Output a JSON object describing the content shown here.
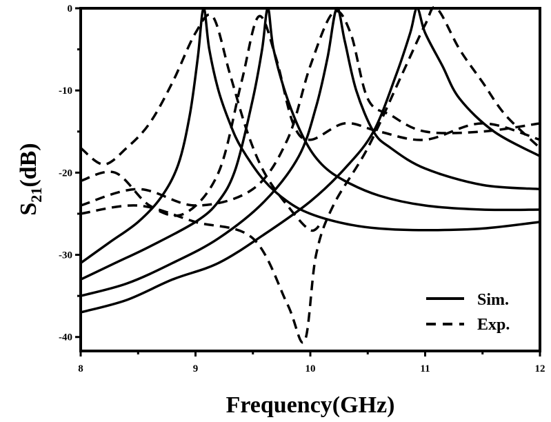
{
  "chart_data": {
    "type": "line",
    "title": "",
    "xlabel": "Frequency(GHz)",
    "ylabel_main": "S",
    "ylabel_sub": "21",
    "ylabel_tail": "(dB)",
    "xlim": [
      8,
      12
    ],
    "ylim": [
      -41.7,
      0
    ],
    "xticks": [
      8,
      9,
      10,
      11,
      12
    ],
    "xtick_labels": [
      "8",
      "9",
      "10",
      "11",
      "12"
    ],
    "yticks": [
      0,
      -10,
      -20,
      -30,
      -40
    ],
    "ytick_labels": [
      "0",
      "-10",
      "-20",
      "-30",
      "-40"
    ],
    "grid": false,
    "legend": {
      "placement": "bottom-right",
      "entries": [
        {
          "label": "Sim.",
          "style": "solid"
        },
        {
          "label": "Exp.",
          "style": "dashed"
        }
      ]
    },
    "series": [
      {
        "name": "Sim. 1",
        "style": "solid",
        "x": [
          8,
          8.25,
          8.5,
          8.7,
          8.85,
          8.95,
          9.02,
          9.07,
          9.12,
          9.2,
          9.3,
          9.4,
          9.6,
          9.8,
          10,
          10.3,
          10.6,
          11,
          11.5,
          12
        ],
        "y": [
          -31,
          -28.5,
          -26,
          -23,
          -19,
          -13,
          -6,
          0,
          -5,
          -10,
          -14,
          -17,
          -21,
          -23.5,
          -25,
          -26.2,
          -26.8,
          -27,
          -26.8,
          -26
        ]
      },
      {
        "name": "Sim. 2",
        "style": "solid",
        "x": [
          8,
          8.3,
          8.6,
          9,
          9.2,
          9.35,
          9.5,
          9.58,
          9.63,
          9.68,
          9.8,
          9.95,
          10.1,
          10.3,
          10.6,
          11,
          11.5,
          12
        ],
        "y": [
          -33,
          -31,
          -29,
          -26,
          -23.5,
          -19.5,
          -11,
          -5,
          0,
          -5,
          -11,
          -16,
          -19,
          -21,
          -22.8,
          -24,
          -24.5,
          -24.5
        ]
      },
      {
        "name": "Sim. 3",
        "style": "solid",
        "x": [
          8,
          8.4,
          8.8,
          9.2,
          9.6,
          9.9,
          10.05,
          10.15,
          10.23,
          10.3,
          10.4,
          10.55,
          10.7,
          11,
          11.5,
          12
        ],
        "y": [
          -35,
          -33.5,
          -31,
          -28,
          -23.5,
          -18,
          -12,
          -6,
          0,
          -4,
          -10,
          -15,
          -17,
          -19.5,
          -21.5,
          -22
        ]
      },
      {
        "name": "Sim. 4",
        "style": "solid",
        "x": [
          8,
          8.4,
          8.8,
          9.2,
          9.6,
          10,
          10.3,
          10.55,
          10.75,
          10.87,
          10.93,
          11,
          11.15,
          11.3,
          11.6,
          12
        ],
        "y": [
          -37,
          -35.5,
          -33,
          -31,
          -27.5,
          -23.5,
          -19.5,
          -15,
          -8,
          -3,
          0,
          -3,
          -7,
          -11,
          -15,
          -18
        ]
      },
      {
        "name": "Exp. 1",
        "style": "dashed",
        "x": [
          8,
          8.2,
          8.4,
          8.6,
          8.8,
          9,
          9.15,
          9.3,
          9.45,
          9.6,
          9.8,
          10,
          10.1
        ],
        "y": [
          -17,
          -19,
          -17,
          -14,
          -9,
          -3,
          -1,
          -8,
          -15,
          -20,
          -24,
          -27,
          -26
        ]
      },
      {
        "name": "Exp. 2",
        "style": "dashed",
        "x": [
          8,
          8.3,
          8.6,
          8.9,
          9.2,
          9.4,
          9.55,
          9.7,
          9.85,
          10,
          10.3,
          10.6,
          11,
          11.5,
          12
        ],
        "y": [
          -21,
          -20,
          -24,
          -25,
          -20,
          -9,
          -1,
          -6,
          -14,
          -16,
          -14,
          -15,
          -16,
          -14,
          -16
        ]
      },
      {
        "name": "Exp. 3",
        "style": "dashed",
        "x": [
          8,
          8.5,
          9,
          9.5,
          9.8,
          10,
          10.2,
          10.35,
          10.5,
          10.7,
          11,
          11.5,
          12
        ],
        "y": [
          -24,
          -22,
          -24,
          -22,
          -16,
          -7,
          -0.5,
          -3,
          -11,
          -13,
          -15,
          -15,
          -14
        ]
      },
      {
        "name": "Exp. 4",
        "style": "dashed",
        "x": [
          8,
          8.5,
          9,
          9.5,
          9.8,
          9.95,
          10.05,
          10.2,
          10.5,
          10.8,
          11,
          11.1,
          11.3,
          11.5,
          11.7,
          12
        ],
        "y": [
          -25,
          -24,
          -26,
          -28,
          -36,
          -40.5,
          -30,
          -24,
          -17,
          -8,
          -2,
          0,
          -5,
          -9,
          -13,
          -17
        ]
      }
    ]
  }
}
